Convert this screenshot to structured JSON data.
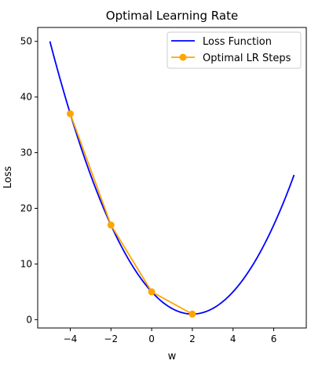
{
  "chart_data": {
    "type": "line",
    "title": "Optimal Learning Rate",
    "xlabel": "w",
    "ylabel": "Loss",
    "xlim": [
      -5.6,
      7.6
    ],
    "ylim": [
      -1.5,
      52.5
    ],
    "x_ticks": [
      -4,
      -2,
      0,
      2,
      4,
      6
    ],
    "x_tick_labels": [
      "−4",
      "−2",
      "0",
      "2",
      "4",
      "6"
    ],
    "y_ticks": [
      0,
      10,
      20,
      30,
      40,
      50
    ],
    "y_tick_labels": [
      "0",
      "10",
      "20",
      "30",
      "40",
      "50"
    ],
    "grid": false,
    "legend_position": "top-right",
    "series": [
      {
        "name": "Loss Function",
        "kind": "curve",
        "function": "(w - 2)^2 + 1",
        "x_range": [
          -5,
          7
        ],
        "color": "#0000ff"
      },
      {
        "name": "Optimal LR Steps",
        "kind": "line-markers",
        "x": [
          -4,
          -2,
          0,
          2
        ],
        "y": [
          37,
          17,
          5,
          1
        ],
        "color": "#ffa500"
      }
    ]
  }
}
